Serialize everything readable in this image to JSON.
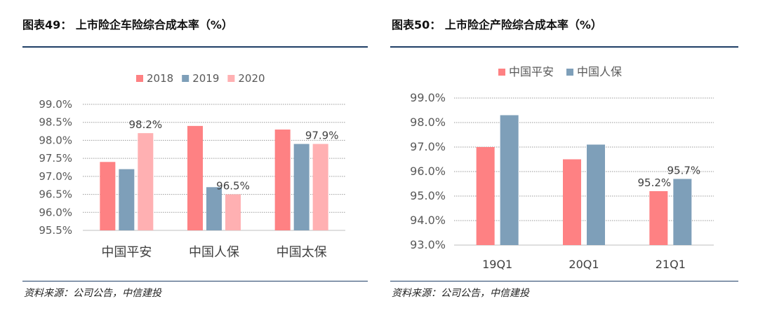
{
  "left": {
    "title": "图表49：  上市险企车险综合成本率（%）",
    "source": "资料来源：公司公告，中信建投",
    "chart_data": {
      "type": "bar",
      "title": "",
      "categories": [
        "中国平安",
        "中国人保",
        "中国太保"
      ],
      "series": [
        {
          "name": "2018",
          "values": [
            97.4,
            98.4,
            98.3
          ],
          "color": "#fe8183"
        },
        {
          "name": "2019",
          "values": [
            97.2,
            96.7,
            97.9
          ],
          "color": "#7e9fb9"
        },
        {
          "name": "2020",
          "values": [
            98.2,
            96.5,
            97.9
          ],
          "color": "#ffb0b2"
        }
      ],
      "data_labels": [
        {
          "series": 2,
          "index": 0,
          "text": "98.2%"
        },
        {
          "series": 2,
          "index": 1,
          "text": "96.5%"
        },
        {
          "series": 2,
          "index": 2,
          "text": "97.9%"
        }
      ],
      "yticks": [
        "95.5%",
        "96.0%",
        "96.5%",
        "97.0%",
        "97.5%",
        "98.0%",
        "98.5%",
        "99.0%"
      ],
      "ylim": [
        95.5,
        99.0
      ],
      "grid": true,
      "legend": "top"
    }
  },
  "right": {
    "title": "图表50：  上市险企产险综合成本率（%）",
    "source": "资料来源：公司公告，中信建投",
    "chart_data": {
      "type": "bar",
      "title": "",
      "categories": [
        "19Q1",
        "20Q1",
        "21Q1"
      ],
      "series": [
        {
          "name": "中国平安",
          "values": [
            97.0,
            96.5,
            95.2
          ],
          "color": "#fe8183"
        },
        {
          "name": "中国人保",
          "values": [
            98.3,
            97.1,
            95.7
          ],
          "color": "#7e9fb9"
        }
      ],
      "data_labels": [
        {
          "series": 0,
          "index": 2,
          "text": "95.2%"
        },
        {
          "series": 1,
          "index": 2,
          "text": "95.7%"
        }
      ],
      "yticks": [
        "93.0%",
        "94.0%",
        "95.0%",
        "96.0%",
        "97.0%",
        "98.0%",
        "99.0%"
      ],
      "ylim": [
        93.0,
        99.0
      ],
      "grid": true,
      "legend": "top"
    }
  }
}
